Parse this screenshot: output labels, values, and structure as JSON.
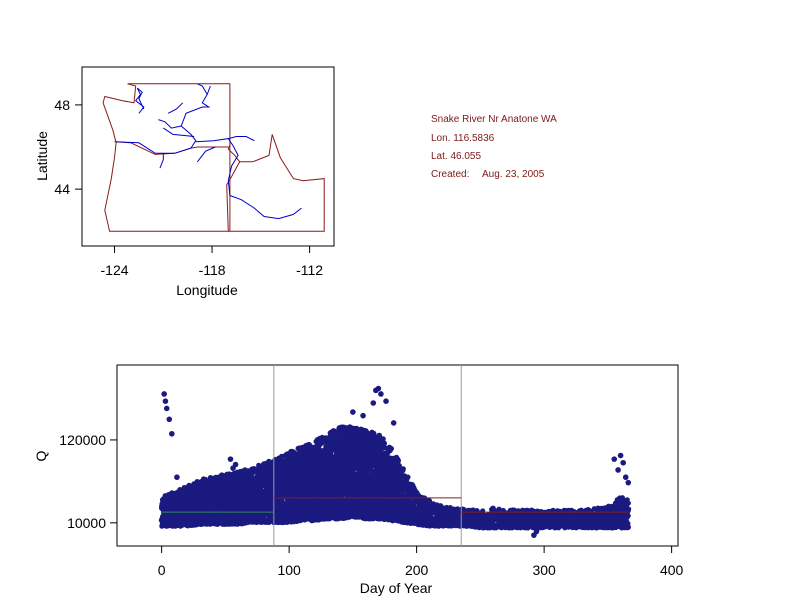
{
  "info_panel": {
    "station": "Snake River Nr Anatone WA",
    "lon": "Lon. 116.5836",
    "lat": "Lat. 46.055",
    "created_label": "Created:",
    "created_date": "Aug. 23, 2005",
    "text_color": "#7a1a1a"
  },
  "chart_data": [
    {
      "type": "map",
      "xlabel": "Longitude",
      "ylabel": "Latitude",
      "xlim": [
        -126,
        -110.5
      ],
      "ylim": [
        41.3,
        49.8
      ],
      "xticks": [
        -124,
        -118,
        -112
      ],
      "xtick_labels": [
        "-124",
        "-118",
        "-112"
      ],
      "yticks": [
        44,
        48
      ],
      "ytick_labels": [
        "44",
        "48"
      ],
      "boundary_color": "#8b1a1a",
      "river_color": "#0000cc",
      "boundaries": [
        [
          [
            -123.2,
            49.0
          ],
          [
            -116.9,
            49.0
          ],
          [
            -116.9,
            46.1
          ],
          [
            -117.0,
            45.9
          ],
          [
            -116.6,
            45.6
          ],
          [
            -116.3,
            45.3
          ],
          [
            -116.8,
            44.6
          ],
          [
            -117.1,
            44.2
          ],
          [
            -117.0,
            42.0
          ],
          [
            -120,
            42.0
          ],
          [
            -124.3,
            42.0
          ],
          [
            -124.6,
            43.0
          ],
          [
            -124.2,
            44.5
          ],
          [
            -124.0,
            45.5
          ],
          [
            -123.9,
            46.2
          ],
          [
            -124.1,
            46.8
          ],
          [
            -124.7,
            48.1
          ],
          [
            -124.6,
            48.4
          ],
          [
            -123.5,
            48.2
          ],
          [
            -122.8,
            48.1
          ],
          [
            -122.7,
            48.9
          ],
          [
            -123.2,
            49.0
          ]
        ],
        [
          [
            -124.0,
            46.25
          ],
          [
            -123.0,
            46.2
          ],
          [
            -121.5,
            45.65
          ],
          [
            -120.3,
            45.7
          ],
          [
            -119.3,
            45.95
          ],
          [
            -118.9,
            46.0
          ],
          [
            -117.0,
            46.0
          ]
        ],
        [
          [
            -116.9,
            46.1
          ],
          [
            -116.9,
            42.0
          ]
        ],
        [
          [
            -116.3,
            45.3
          ],
          [
            -115.5,
            45.3
          ],
          [
            -114.5,
            45.6
          ],
          [
            -114.3,
            46.6
          ],
          [
            -113.8,
            45.5
          ],
          [
            -113.0,
            44.5
          ],
          [
            -112.4,
            44.4
          ],
          [
            -111.1,
            44.5
          ],
          [
            -111.1,
            42.0
          ],
          [
            -117.0,
            42.0
          ]
        ]
      ],
      "rivers": [
        [
          [
            -122.5,
            47.6
          ],
          [
            -122.2,
            47.9
          ],
          [
            -122.7,
            48.2
          ],
          [
            -122.4,
            48.5
          ],
          [
            -122.6,
            48.8
          ],
          [
            -122.3,
            48.6
          ],
          [
            -122.5,
            48.3
          ],
          [
            -122.2,
            47.8
          ]
        ],
        [
          [
            -123.9,
            46.25
          ],
          [
            -122.5,
            46.2
          ],
          [
            -121.5,
            45.7
          ],
          [
            -120.3,
            45.7
          ],
          [
            -119.3,
            45.95
          ],
          [
            -119.0,
            46.3
          ],
          [
            -119.3,
            46.6
          ],
          [
            -119.9,
            47.0
          ],
          [
            -119.6,
            47.6
          ],
          [
            -118.6,
            47.9
          ],
          [
            -118.2,
            47.9
          ],
          [
            -118.6,
            48.1
          ],
          [
            -118.3,
            48.5
          ],
          [
            -118.1,
            48.9
          ]
        ],
        [
          [
            -119.0,
            46.25
          ],
          [
            -117.9,
            46.3
          ],
          [
            -117.0,
            46.4
          ],
          [
            -116.7,
            46.05
          ],
          [
            -116.4,
            45.6
          ],
          [
            -116.8,
            45.1
          ],
          [
            -117.0,
            44.4
          ],
          [
            -116.9,
            43.7
          ],
          [
            -116.2,
            43.5
          ],
          [
            -115.4,
            43.1
          ],
          [
            -114.8,
            42.7
          ],
          [
            -113.9,
            42.6
          ],
          [
            -113.0,
            42.8
          ],
          [
            -112.5,
            43.1
          ]
        ],
        [
          [
            -121.0,
            45.7
          ],
          [
            -121.0,
            45.4
          ],
          [
            -121.2,
            45.0
          ]
        ],
        [
          [
            -117.0,
            46.4
          ],
          [
            -116.5,
            46.5
          ],
          [
            -115.9,
            46.5
          ],
          [
            -115.4,
            46.3
          ]
        ],
        [
          [
            -119.9,
            47.0
          ],
          [
            -120.5,
            46.9
          ],
          [
            -120.9,
            47.2
          ],
          [
            -121.3,
            47.3
          ]
        ],
        [
          [
            -119.1,
            46.5
          ],
          [
            -120.4,
            46.6
          ],
          [
            -121.0,
            46.9
          ]
        ],
        [
          [
            -120.7,
            47.6
          ],
          [
            -120.2,
            47.8
          ],
          [
            -119.8,
            48.1
          ]
        ],
        [
          [
            -118.3,
            48.5
          ],
          [
            -118.6,
            48.9
          ],
          [
            -118.9,
            49.0
          ]
        ],
        [
          [
            -117.8,
            46.0
          ],
          [
            -118.4,
            45.8
          ],
          [
            -118.9,
            45.3
          ]
        ]
      ]
    },
    {
      "type": "scatter",
      "xlabel": "Day of Year",
      "ylabel": "Q",
      "xlim": [
        -35,
        405
      ],
      "ylim": [
        0,
        1
      ],
      "xticks": [
        0,
        100,
        200,
        300,
        400
      ],
      "xtick_labels": [
        "0",
        "100",
        "200",
        "300",
        "400"
      ],
      "yticks": [
        10000,
        120000
      ],
      "ytick_labels": [
        "10000",
        "120000"
      ],
      "y_scale": "Q tick positions as printed: 10000 near bottom, 120000 upper; top of band ≈ 190000",
      "ytick_positions": [
        0.128,
        0.586
      ],
      "point_color": "#1a1a80",
      "season_dividers": [
        88,
        235
      ],
      "divider_color": "#999999",
      "mean_lines": [
        {
          "from": 0,
          "to": 88,
          "level": 0.187,
          "color": "#2e8b57"
        },
        {
          "from": 88,
          "to": 235,
          "level": 0.266,
          "color": "#8b1a1a"
        },
        {
          "from": 235,
          "to": 366,
          "level": 0.187,
          "color": "#8b1a1a"
        }
      ],
      "envelope": {
        "days": [
          0,
          10,
          20,
          30,
          40,
          50,
          60,
          70,
          80,
          90,
          100,
          110,
          120,
          130,
          140,
          150,
          160,
          170,
          180,
          190,
          200,
          210,
          220,
          230,
          240,
          250,
          260,
          270,
          280,
          290,
          300,
          310,
          320,
          330,
          340,
          350,
          360,
          366
        ],
        "upper": [
          0.27,
          0.3,
          0.33,
          0.37,
          0.38,
          0.4,
          0.41,
          0.43,
          0.46,
          0.48,
          0.52,
          0.55,
          0.58,
          0.62,
          0.66,
          0.66,
          0.64,
          0.62,
          0.55,
          0.42,
          0.3,
          0.25,
          0.22,
          0.21,
          0.2,
          0.2,
          0.21,
          0.2,
          0.2,
          0.2,
          0.19,
          0.2,
          0.2,
          0.2,
          0.21,
          0.22,
          0.27,
          0.26
        ],
        "lower": [
          0.11,
          0.11,
          0.11,
          0.12,
          0.12,
          0.12,
          0.12,
          0.13,
          0.13,
          0.13,
          0.13,
          0.14,
          0.14,
          0.15,
          0.15,
          0.16,
          0.15,
          0.15,
          0.14,
          0.13,
          0.12,
          0.11,
          0.11,
          0.11,
          0.11,
          0.1,
          0.1,
          0.1,
          0.1,
          0.1,
          0.1,
          0.1,
          0.1,
          0.1,
          0.1,
          0.1,
          0.1,
          0.1
        ]
      },
      "outliers": [
        [
          2,
          0.84
        ],
        [
          3,
          0.8
        ],
        [
          4,
          0.76
        ],
        [
          6,
          0.7
        ],
        [
          8,
          0.62
        ],
        [
          12,
          0.38
        ],
        [
          28,
          0.32
        ],
        [
          36,
          0.35
        ],
        [
          54,
          0.48
        ],
        [
          56,
          0.43
        ],
        [
          58,
          0.45
        ],
        [
          78,
          0.43
        ],
        [
          80,
          0.45
        ],
        [
          150,
          0.74
        ],
        [
          158,
          0.72
        ],
        [
          166,
          0.79
        ],
        [
          168,
          0.86
        ],
        [
          170,
          0.87
        ],
        [
          172,
          0.84
        ],
        [
          176,
          0.8
        ],
        [
          182,
          0.68
        ],
        [
          292,
          0.06
        ],
        [
          294,
          0.08
        ],
        [
          355,
          0.48
        ],
        [
          358,
          0.42
        ],
        [
          360,
          0.5
        ],
        [
          362,
          0.46
        ],
        [
          364,
          0.38
        ],
        [
          366,
          0.35
        ]
      ]
    }
  ]
}
